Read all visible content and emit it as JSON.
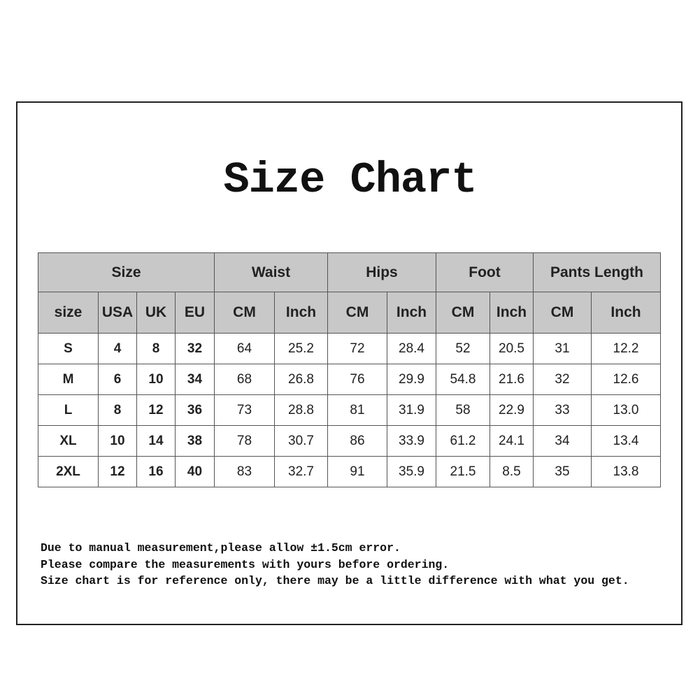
{
  "title": "Size Chart",
  "table": {
    "groups": [
      "Size",
      "Waist",
      "Hips",
      "Foot",
      "Pants Length"
    ],
    "subheaders": [
      "size",
      "USA",
      "UK",
      "EU",
      "CM",
      "Inch",
      "CM",
      "Inch",
      "CM",
      "Inch",
      "CM",
      "Inch"
    ],
    "rows": [
      [
        "S",
        "4",
        "8",
        "32",
        "64",
        "25.2",
        "72",
        "28.4",
        "52",
        "20.5",
        "31",
        "12.2"
      ],
      [
        "M",
        "6",
        "10",
        "34",
        "68",
        "26.8",
        "76",
        "29.9",
        "54.8",
        "21.6",
        "32",
        "12.6"
      ],
      [
        "L",
        "8",
        "12",
        "36",
        "73",
        "28.8",
        "81",
        "31.9",
        "58",
        "22.9",
        "33",
        "13.0"
      ],
      [
        "XL",
        "10",
        "14",
        "38",
        "78",
        "30.7",
        "86",
        "33.9",
        "61.2",
        "24.1",
        "34",
        "13.4"
      ],
      [
        "2XL",
        "12",
        "16",
        "40",
        "83",
        "32.7",
        "91",
        "35.9",
        "21.5",
        "8.5",
        "35",
        "13.8"
      ]
    ],
    "header_bg": "#c8c8c8"
  },
  "notes": [
    "Due to manual measurement,please allow ±1.5cm error.",
    "Please compare the measurements with yours before ordering.",
    "Size chart is for reference only, there may be a little difference with what you get."
  ]
}
